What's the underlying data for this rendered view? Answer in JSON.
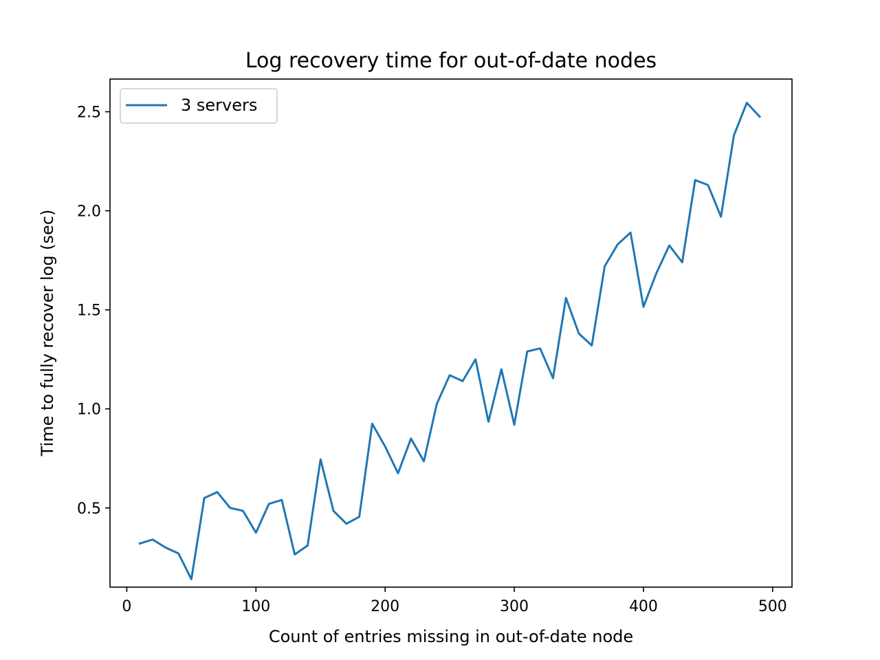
{
  "chart_data": {
    "type": "line",
    "title": "Log recovery time for out-of-date nodes",
    "xlabel": "Count of entries missing in out-of-date node",
    "ylabel": "Time to fully recover log (sec)",
    "xlim": [
      -13,
      515
    ],
    "ylim": [
      0.1,
      2.665
    ],
    "xticks": [
      0,
      100,
      200,
      300,
      400,
      500
    ],
    "yticks": [
      0.5,
      1.0,
      1.5,
      2.0,
      2.5
    ],
    "xtick_labels": [
      "0",
      "100",
      "200",
      "300",
      "400",
      "500"
    ],
    "ytick_labels": [
      "0.5",
      "1.0",
      "1.5",
      "2.0",
      "2.5"
    ],
    "grid": false,
    "legend": "upper left",
    "series": [
      {
        "name": "3 servers",
        "color": "#1f77b4",
        "x": [
          10,
          20,
          30,
          40,
          50,
          60,
          70,
          80,
          90,
          100,
          110,
          120,
          130,
          140,
          150,
          160,
          170,
          180,
          190,
          200,
          210,
          220,
          230,
          240,
          250,
          260,
          270,
          280,
          290,
          300,
          310,
          320,
          330,
          340,
          350,
          360,
          370,
          380,
          390,
          400,
          410,
          420,
          430,
          440,
          450,
          460,
          470,
          480,
          490
        ],
        "y": [
          0.32,
          0.34,
          0.3,
          0.27,
          0.14,
          0.55,
          0.58,
          0.5,
          0.485,
          0.375,
          0.52,
          0.54,
          0.265,
          0.31,
          0.745,
          0.485,
          0.42,
          0.455,
          0.925,
          0.81,
          0.675,
          0.85,
          0.735,
          1.025,
          1.17,
          1.14,
          1.25,
          0.935,
          1.2,
          0.92,
          1.29,
          1.305,
          1.155,
          1.56,
          1.38,
          1.32,
          1.72,
          1.83,
          1.89,
          1.515,
          1.685,
          1.825,
          1.74,
          2.155,
          2.13,
          1.97,
          2.38,
          2.545,
          2.475
        ]
      }
    ]
  }
}
